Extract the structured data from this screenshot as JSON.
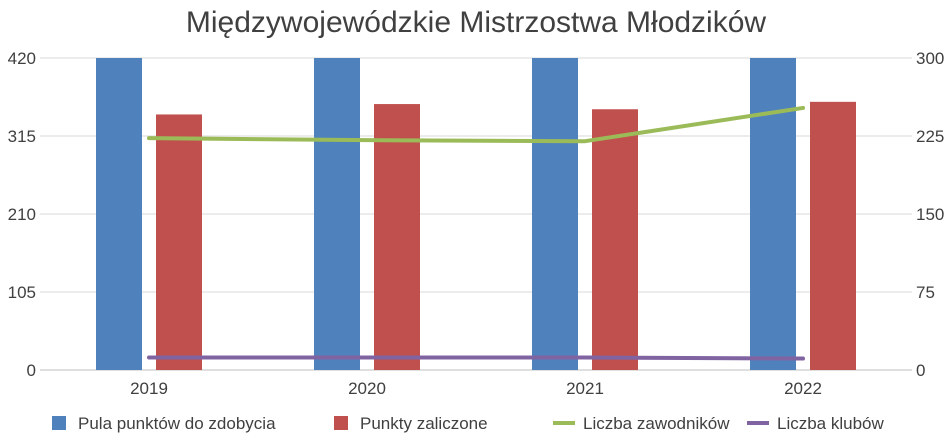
{
  "chart_data": {
    "type": "bar",
    "title": "Międzywojewódzkie Mistrzostwa Młodzików",
    "xlabel": "",
    "ylabel": "",
    "categories": [
      "2019",
      "2020",
      "2021",
      "2022"
    ],
    "y_left": {
      "ylim": [
        0,
        420
      ],
      "ticks": [
        "0",
        "105",
        "210",
        "315",
        "420"
      ]
    },
    "y_right": {
      "ylim": [
        0,
        300
      ],
      "ticks": [
        "0",
        "75",
        "150",
        "225",
        "300"
      ]
    },
    "grid": true,
    "legend_position": "bottom",
    "series": [
      {
        "name": "Pula punktów do zdobycia",
        "type": "bar",
        "axis": "left",
        "color": "#4F81BD",
        "values": [
          420,
          420,
          420,
          420
        ]
      },
      {
        "name": "Punkty zaliczone",
        "type": "bar",
        "axis": "left",
        "color": "#C0504D",
        "values": [
          344,
          358,
          351,
          361
        ]
      },
      {
        "name": "Liczba zawodników",
        "type": "line",
        "axis": "right",
        "color": "#9BBB59",
        "values": [
          223,
          221,
          220,
          252
        ]
      },
      {
        "name": "Liczba klubów",
        "type": "line",
        "axis": "right",
        "color": "#8064A2",
        "values": [
          12,
          12,
          12,
          11
        ]
      }
    ]
  }
}
